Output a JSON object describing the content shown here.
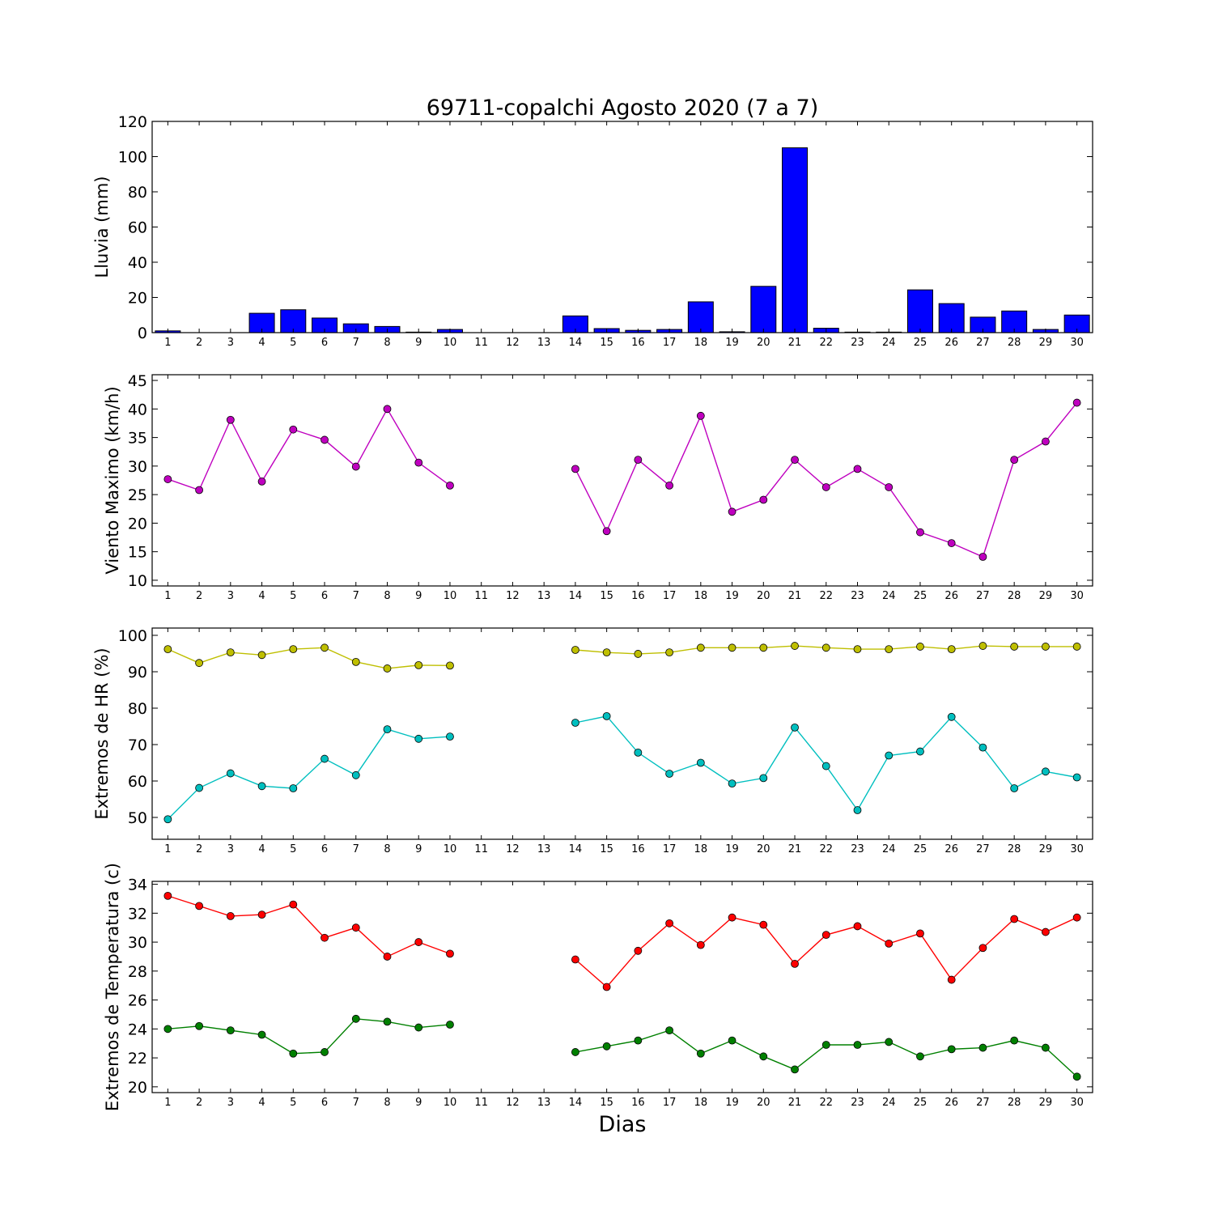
{
  "title": "69711-copalchi Agosto 2020  (7 a 7)",
  "xlabel": "Dias",
  "chart_data": [
    {
      "type": "bar",
      "ylabel": "Lluvia (mm)",
      "ylim": [
        0,
        120
      ],
      "yticks": [
        0,
        20,
        40,
        60,
        80,
        100,
        120
      ],
      "x": [
        1,
        2,
        3,
        4,
        5,
        6,
        7,
        8,
        9,
        10,
        11,
        12,
        13,
        14,
        15,
        16,
        17,
        18,
        19,
        20,
        21,
        22,
        23,
        24,
        25,
        26,
        27,
        28,
        29,
        30
      ],
      "values": [
        1.0,
        0,
        0,
        11.0,
        13.0,
        8.3,
        5.0,
        3.5,
        0.3,
        1.8,
        0,
        0,
        0,
        9.5,
        2.3,
        1.3,
        1.8,
        17.5,
        0.5,
        26.3,
        105.0,
        2.5,
        0.3,
        0.3,
        24.3,
        16.5,
        8.8,
        12.3,
        1.8,
        10.0
      ],
      "colors": {
        "bar": "#0000ff"
      }
    },
    {
      "type": "line",
      "ylabel": "Viento Maximo (km/h)",
      "ylim": [
        9,
        46
      ],
      "yticks": [
        10,
        15,
        20,
        25,
        30,
        35,
        40,
        45
      ],
      "x": [
        1,
        2,
        3,
        4,
        5,
        6,
        7,
        8,
        9,
        10,
        11,
        12,
        13,
        14,
        15,
        16,
        17,
        18,
        19,
        20,
        21,
        22,
        23,
        24,
        25,
        26,
        27,
        28,
        29,
        30
      ],
      "series": [
        {
          "color": "#bf00bf",
          "values": [
            27.7,
            25.8,
            38.1,
            27.3,
            36.4,
            34.6,
            29.9,
            40.0,
            30.6,
            26.6,
            null,
            null,
            null,
            29.5,
            18.6,
            31.1,
            26.6,
            38.8,
            22.0,
            24.1,
            31.1,
            26.3,
            29.5,
            26.3,
            18.4,
            16.5,
            14.1,
            31.1,
            34.3,
            41.1
          ]
        }
      ]
    },
    {
      "type": "line",
      "ylabel": "Extremos de HR (%)",
      "ylim": [
        44,
        102
      ],
      "yticks": [
        50,
        60,
        70,
        80,
        90,
        100
      ],
      "x": [
        1,
        2,
        3,
        4,
        5,
        6,
        7,
        8,
        9,
        10,
        11,
        12,
        13,
        14,
        15,
        16,
        17,
        18,
        19,
        20,
        21,
        22,
        23,
        24,
        25,
        26,
        27,
        28,
        29,
        30
      ],
      "series": [
        {
          "color": "#bfbf00",
          "values": [
            96.2,
            92.4,
            95.3,
            94.6,
            96.2,
            96.6,
            92.7,
            90.9,
            91.8,
            91.7,
            null,
            null,
            null,
            96.0,
            95.3,
            94.9,
            95.3,
            96.6,
            96.6,
            96.6,
            97.1,
            96.6,
            96.2,
            96.2,
            96.9,
            96.2,
            97.1,
            96.9,
            96.9,
            96.9
          ]
        },
        {
          "color": "#00bfbf",
          "values": [
            49.5,
            58.1,
            62.1,
            58.6,
            58.0,
            66.1,
            61.6,
            74.2,
            71.6,
            72.2,
            null,
            null,
            null,
            76.0,
            77.8,
            67.8,
            62.0,
            65.0,
            59.3,
            60.8,
            74.7,
            64.1,
            52.0,
            67.0,
            68.1,
            77.6,
            69.2,
            58.0,
            62.6,
            61.0
          ]
        }
      ]
    },
    {
      "type": "line",
      "ylabel": "Extremos de Temperatura (c)",
      "ylim": [
        19.6,
        34.2
      ],
      "yticks": [
        20,
        22,
        24,
        26,
        28,
        30,
        32,
        34
      ],
      "x": [
        1,
        2,
        3,
        4,
        5,
        6,
        7,
        8,
        9,
        10,
        11,
        12,
        13,
        14,
        15,
        16,
        17,
        18,
        19,
        20,
        21,
        22,
        23,
        24,
        25,
        26,
        27,
        28,
        29,
        30
      ],
      "series": [
        {
          "color": "#ff0000",
          "values": [
            33.2,
            32.5,
            31.8,
            31.9,
            32.6,
            30.3,
            31.0,
            29.0,
            30.0,
            29.2,
            null,
            null,
            null,
            28.8,
            26.9,
            29.4,
            31.3,
            29.8,
            31.7,
            31.2,
            28.5,
            30.5,
            31.1,
            29.9,
            30.6,
            27.4,
            29.6,
            31.6,
            30.7,
            31.7
          ]
        },
        {
          "color": "#008000",
          "values": [
            24.0,
            24.2,
            23.9,
            23.6,
            22.3,
            22.4,
            24.7,
            24.5,
            24.1,
            24.3,
            null,
            null,
            null,
            22.4,
            22.8,
            23.2,
            23.9,
            22.3,
            23.2,
            22.1,
            21.2,
            22.9,
            22.9,
            23.1,
            22.1,
            22.6,
            22.7,
            23.2,
            22.7,
            20.7
          ]
        }
      ]
    }
  ]
}
